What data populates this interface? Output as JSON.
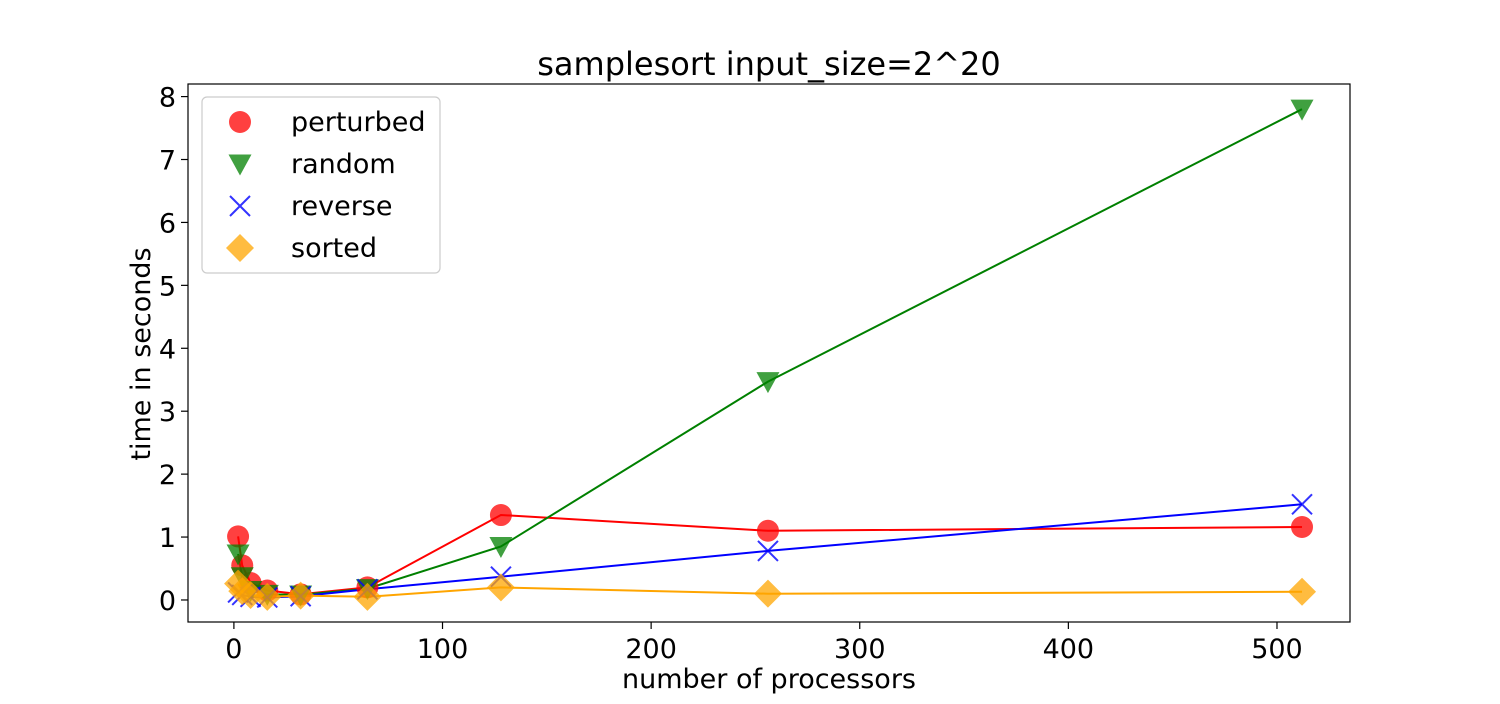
{
  "chart_data": {
    "type": "line",
    "title": "samplesort input_size=2^20",
    "xlabel": "number of processors",
    "ylabel": "time in seconds",
    "xlim": [
      -22,
      535
    ],
    "ylim": [
      -0.35,
      8.2
    ],
    "xticks": [
      0,
      100,
      200,
      300,
      400,
      500
    ],
    "yticks": [
      0,
      1,
      2,
      3,
      4,
      5,
      6,
      7,
      8
    ],
    "xtick_labels": [
      "0",
      "100",
      "200",
      "300",
      "400",
      "500"
    ],
    "ytick_labels": [
      "0",
      "1",
      "2",
      "3",
      "4",
      "5",
      "6",
      "7",
      "8"
    ],
    "grid": false,
    "legend_position": "top-left",
    "x": [
      2,
      4,
      8,
      16,
      32,
      64,
      128,
      256,
      512
    ],
    "series": [
      {
        "name": "perturbed",
        "marker": "circle",
        "color": "#ff0000",
        "values": [
          1.01,
          0.55,
          0.27,
          0.15,
          0.09,
          0.2,
          1.35,
          1.1,
          1.16
        ]
      },
      {
        "name": "random",
        "marker": "triangle-down",
        "color": "#008000",
        "values": [
          0.73,
          0.37,
          0.15,
          0.09,
          0.08,
          0.18,
          0.85,
          3.47,
          7.8
        ]
      },
      {
        "name": "reverse",
        "marker": "x",
        "color": "#0000ff",
        "values": [
          0.12,
          0.08,
          0.05,
          0.04,
          0.06,
          0.17,
          0.37,
          0.78,
          1.52
        ]
      },
      {
        "name": "sorted",
        "marker": "diamond",
        "color": "#ffa500",
        "values": [
          0.26,
          0.14,
          0.08,
          0.05,
          0.07,
          0.05,
          0.2,
          0.1,
          0.13
        ]
      }
    ]
  }
}
